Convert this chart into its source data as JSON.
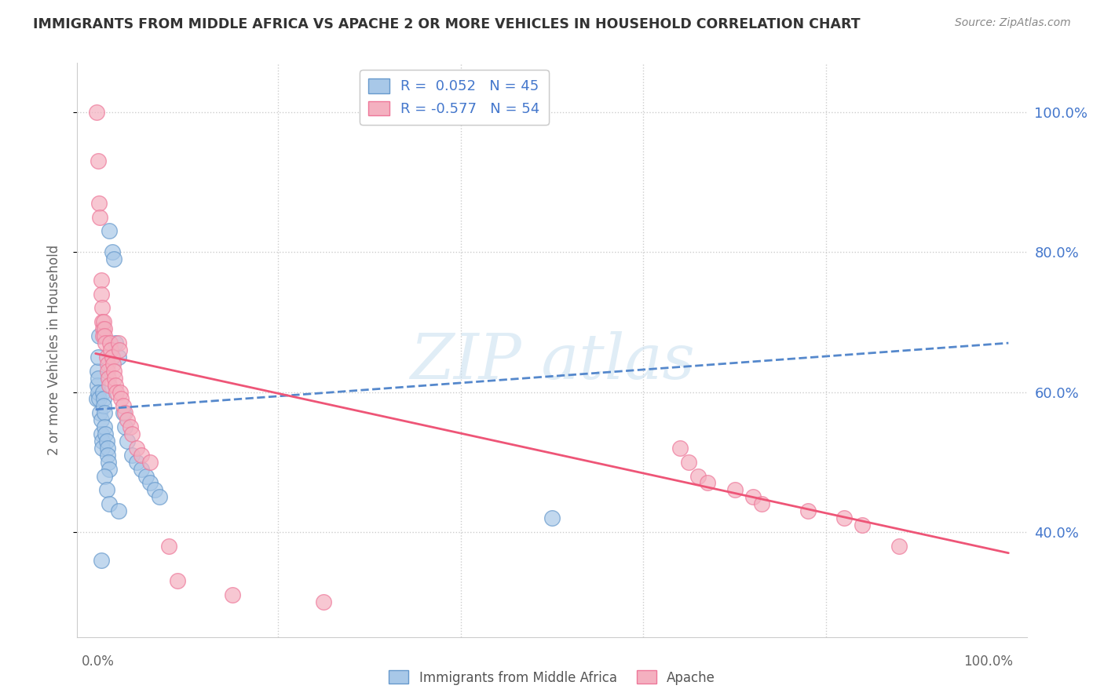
{
  "title": "IMMIGRANTS FROM MIDDLE AFRICA VS APACHE 2 OR MORE VEHICLES IN HOUSEHOLD CORRELATION CHART",
  "source": "Source: ZipAtlas.com",
  "ylabel": "2 or more Vehicles in Household",
  "legend_label1": "Immigrants from Middle Africa",
  "legend_label2": "Apache",
  "R1": 0.052,
  "N1": 45,
  "R2": -0.577,
  "N2": 54,
  "color_blue_fill": "#a8c8e8",
  "color_pink_fill": "#f4b0c0",
  "color_blue_edge": "#6699cc",
  "color_pink_edge": "#ee7799",
  "color_blue_line": "#5588cc",
  "color_pink_line": "#ee5577",
  "color_blue_text": "#4477cc",
  "color_axis_text": "#666666",
  "blue_line_x0": 0.0,
  "blue_line_y0": 0.575,
  "blue_line_x1": 1.0,
  "blue_line_y1": 0.67,
  "pink_line_x0": 0.0,
  "pink_line_y0": 0.655,
  "pink_line_x1": 1.0,
  "pink_line_y1": 0.37,
  "xmin": 0.0,
  "xmax": 1.0,
  "ymin": 0.25,
  "ymax": 1.07,
  "blue_scatter": [
    [
      0.001,
      0.59
    ],
    [
      0.002,
      0.63
    ],
    [
      0.002,
      0.61
    ],
    [
      0.003,
      0.65
    ],
    [
      0.003,
      0.62
    ],
    [
      0.003,
      0.6
    ],
    [
      0.004,
      0.68
    ],
    [
      0.004,
      0.59
    ],
    [
      0.005,
      0.57
    ],
    [
      0.006,
      0.56
    ],
    [
      0.006,
      0.54
    ],
    [
      0.007,
      0.53
    ],
    [
      0.007,
      0.52
    ],
    [
      0.008,
      0.6
    ],
    [
      0.009,
      0.59
    ],
    [
      0.009,
      0.58
    ],
    [
      0.01,
      0.57
    ],
    [
      0.01,
      0.55
    ],
    [
      0.011,
      0.54
    ],
    [
      0.012,
      0.53
    ],
    [
      0.013,
      0.52
    ],
    [
      0.013,
      0.51
    ],
    [
      0.014,
      0.5
    ],
    [
      0.015,
      0.49
    ],
    [
      0.015,
      0.83
    ],
    [
      0.018,
      0.8
    ],
    [
      0.02,
      0.79
    ],
    [
      0.022,
      0.67
    ],
    [
      0.025,
      0.65
    ],
    [
      0.03,
      0.57
    ],
    [
      0.032,
      0.55
    ],
    [
      0.035,
      0.53
    ],
    [
      0.04,
      0.51
    ],
    [
      0.045,
      0.5
    ],
    [
      0.05,
      0.49
    ],
    [
      0.055,
      0.48
    ],
    [
      0.06,
      0.47
    ],
    [
      0.065,
      0.46
    ],
    [
      0.07,
      0.45
    ],
    [
      0.01,
      0.48
    ],
    [
      0.012,
      0.46
    ],
    [
      0.015,
      0.44
    ],
    [
      0.025,
      0.43
    ],
    [
      0.5,
      0.42
    ],
    [
      0.006,
      0.36
    ]
  ],
  "pink_scatter": [
    [
      0.001,
      1.0
    ],
    [
      0.003,
      0.93
    ],
    [
      0.004,
      0.87
    ],
    [
      0.005,
      0.85
    ],
    [
      0.006,
      0.76
    ],
    [
      0.006,
      0.74
    ],
    [
      0.007,
      0.72
    ],
    [
      0.007,
      0.7
    ],
    [
      0.008,
      0.69
    ],
    [
      0.008,
      0.68
    ],
    [
      0.009,
      0.7
    ],
    [
      0.01,
      0.69
    ],
    [
      0.01,
      0.68
    ],
    [
      0.011,
      0.67
    ],
    [
      0.012,
      0.65
    ],
    [
      0.013,
      0.64
    ],
    [
      0.013,
      0.63
    ],
    [
      0.014,
      0.62
    ],
    [
      0.015,
      0.61
    ],
    [
      0.016,
      0.67
    ],
    [
      0.017,
      0.66
    ],
    [
      0.018,
      0.65
    ],
    [
      0.019,
      0.64
    ],
    [
      0.02,
      0.63
    ],
    [
      0.021,
      0.62
    ],
    [
      0.022,
      0.61
    ],
    [
      0.023,
      0.6
    ],
    [
      0.025,
      0.67
    ],
    [
      0.026,
      0.66
    ],
    [
      0.027,
      0.6
    ],
    [
      0.028,
      0.59
    ],
    [
      0.03,
      0.58
    ],
    [
      0.032,
      0.57
    ],
    [
      0.035,
      0.56
    ],
    [
      0.038,
      0.55
    ],
    [
      0.04,
      0.54
    ],
    [
      0.045,
      0.52
    ],
    [
      0.05,
      0.51
    ],
    [
      0.06,
      0.5
    ],
    [
      0.08,
      0.38
    ],
    [
      0.09,
      0.33
    ],
    [
      0.15,
      0.31
    ],
    [
      0.25,
      0.3
    ],
    [
      0.64,
      0.52
    ],
    [
      0.65,
      0.5
    ],
    [
      0.66,
      0.48
    ],
    [
      0.67,
      0.47
    ],
    [
      0.7,
      0.46
    ],
    [
      0.72,
      0.45
    ],
    [
      0.73,
      0.44
    ],
    [
      0.78,
      0.43
    ],
    [
      0.82,
      0.42
    ],
    [
      0.84,
      0.41
    ],
    [
      0.88,
      0.38
    ]
  ]
}
